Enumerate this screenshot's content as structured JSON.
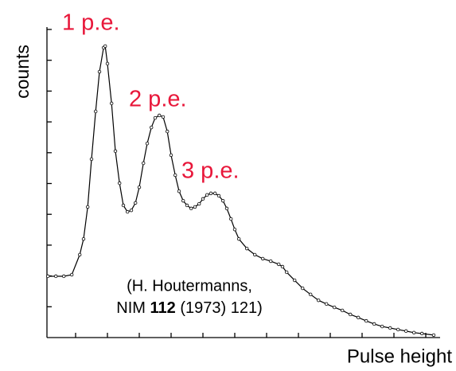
{
  "chart_data": {
    "type": "line",
    "ylabel": "counts",
    "xlabel": "Pulse height",
    "annotations": [
      "1 p.e.",
      "2 p.e.",
      "3 p.e."
    ],
    "citation": {
      "line1": "(H. Houtermanns,",
      "prefix": "NIM",
      "volume": "112",
      "suffix": "(1973) 121)"
    },
    "xlim": [
      0.1,
      12.45
    ],
    "ylim": [
      0,
      10
    ],
    "xticks": [
      1,
      2,
      3,
      4,
      5,
      6,
      7,
      8,
      9,
      10,
      11,
      12
    ],
    "yticks": [
      1,
      2,
      3,
      4,
      5,
      6,
      7,
      8,
      9,
      10
    ],
    "color": "#000000",
    "x": [
      0.13,
      0.38,
      0.63,
      0.88,
      1.13,
      1.25,
      1.38,
      1.5,
      1.63,
      1.75,
      1.88,
      1.93,
      2.0,
      2.13,
      2.25,
      2.38,
      2.5,
      2.63,
      2.75,
      2.88,
      3.0,
      3.13,
      3.25,
      3.38,
      3.5,
      3.63,
      3.75,
      3.88,
      4.0,
      4.13,
      4.25,
      4.38,
      4.5,
      4.63,
      4.75,
      4.88,
      5.0,
      5.13,
      5.25,
      5.38,
      5.5,
      5.63,
      5.75,
      5.88,
      6.0,
      6.13,
      6.38,
      6.63,
      6.88,
      7.13,
      7.38,
      7.5,
      7.63,
      7.88,
      8.13,
      8.38,
      8.63,
      8.88,
      9.13,
      9.38,
      9.63,
      9.88,
      10.13,
      10.38,
      10.63,
      10.88,
      11.13,
      11.38,
      11.63,
      11.88,
      12.25
    ],
    "values": [
      1.99,
      1.99,
      1.99,
      2.04,
      2.69,
      3.2,
      4.24,
      5.79,
      7.34,
      8.63,
      9.41,
      9.46,
      8.89,
      7.6,
      6.05,
      5.01,
      4.29,
      4.08,
      4.13,
      4.37,
      4.88,
      5.66,
      6.3,
      6.82,
      7.13,
      7.21,
      7.16,
      6.69,
      5.92,
      5.27,
      4.75,
      4.44,
      4.29,
      4.19,
      4.24,
      4.34,
      4.5,
      4.63,
      4.68,
      4.68,
      4.6,
      4.44,
      4.19,
      3.85,
      3.51,
      3.2,
      2.89,
      2.69,
      2.56,
      2.48,
      2.38,
      2.3,
      2.12,
      1.86,
      1.6,
      1.4,
      1.21,
      1.09,
      0.98,
      0.88,
      0.75,
      0.65,
      0.54,
      0.44,
      0.36,
      0.31,
      0.26,
      0.21,
      0.16,
      0.13,
      0.08
    ]
  }
}
